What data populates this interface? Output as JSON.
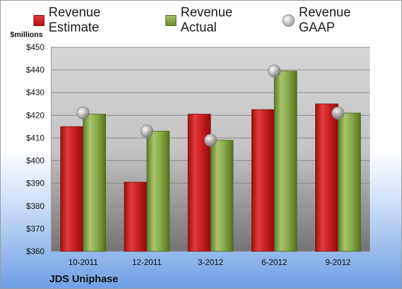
{
  "chart_data": {
    "type": "bar",
    "title": "",
    "company": "JDS Uniphase",
    "unit_label": "$millions",
    "categories": [
      "10-2011",
      "12-2011",
      "3-2012",
      "6-2012",
      "9-2012"
    ],
    "series": [
      {
        "name": "Revenue Estimate",
        "kind": "bar",
        "values": [
          415,
          390.5,
          420.5,
          422.5,
          425
        ]
      },
      {
        "name": "Revenue Actual",
        "kind": "bar",
        "values": [
          420.5,
          413,
          409,
          439.5,
          421
        ]
      },
      {
        "name": "Revenue GAAP",
        "kind": "marker",
        "values": [
          421,
          413,
          409,
          439.5,
          421
        ]
      }
    ],
    "ylim": [
      360,
      450
    ],
    "y_ticks": [
      360,
      370,
      380,
      390,
      400,
      410,
      420,
      430,
      440,
      450
    ],
    "y_tick_labels": [
      "$360",
      "$370",
      "$380",
      "$390",
      "$400",
      "$410",
      "$420",
      "$430",
      "$440",
      "$450"
    ],
    "grid": true,
    "legend_position": "top",
    "colors": {
      "estimate": "#cc1f1f",
      "actual": "#8aaa4c",
      "gaap": "#b5b5b5",
      "plot_background_top": "#d9d9d9",
      "plot_background_bottom": "#7a7a7a"
    }
  }
}
